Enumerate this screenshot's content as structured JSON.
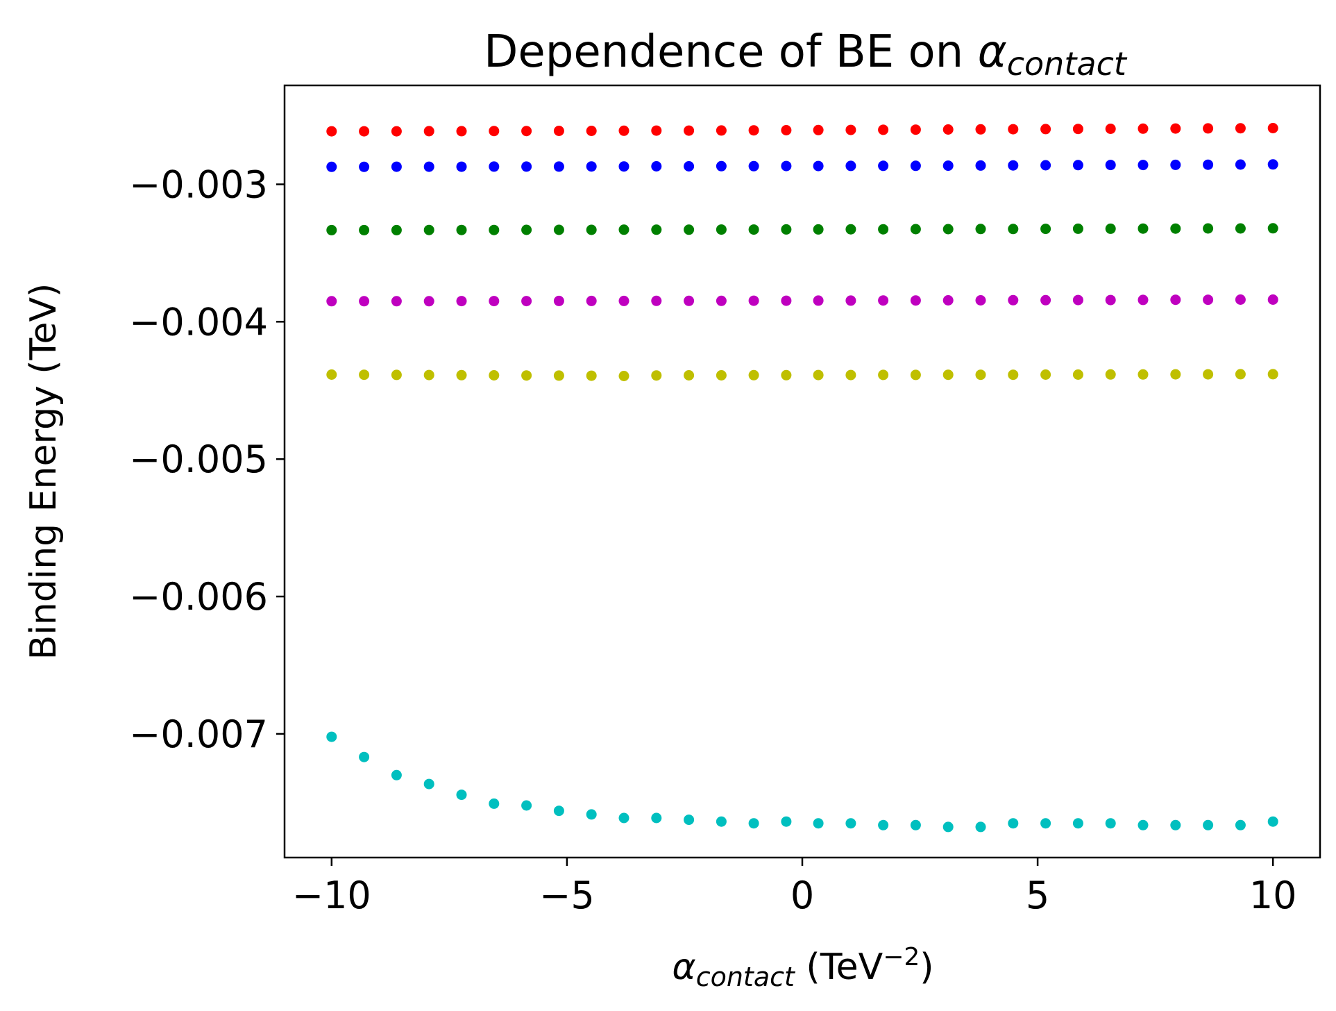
{
  "chart_data": {
    "type": "scatter",
    "title": {
      "text": "Dependence of BE on ",
      "symbol": "α",
      "subscript": "contact"
    },
    "xlabel": {
      "symbol": "α",
      "subscript": "contact",
      "unit_text": " (TeV",
      "superscript": "−2",
      "close": ")"
    },
    "ylabel": "Binding Energy (TeV)",
    "xlim": [
      -11.0,
      11.0
    ],
    "ylim": [
      -0.0079,
      -0.00228
    ],
    "xticks": [
      -10,
      -5,
      0,
      5,
      10
    ],
    "xtick_labels": [
      "−10",
      "−5",
      "0",
      "5",
      "10"
    ],
    "yticks": [
      -0.003,
      -0.004,
      -0.005,
      -0.006,
      -0.007
    ],
    "ytick_labels": [
      "−0.003",
      "−0.004",
      "−0.005",
      "−0.006",
      "−0.007"
    ],
    "grid": false,
    "legend": "none",
    "x": [
      -10.0,
      -9.31,
      -8.62,
      -7.93,
      -7.24,
      -6.55,
      -5.86,
      -5.17,
      -4.48,
      -3.79,
      -3.1,
      -2.41,
      -1.72,
      -1.03,
      -0.34,
      0.34,
      1.03,
      1.72,
      2.41,
      3.1,
      3.79,
      4.48,
      5.17,
      5.86,
      6.55,
      7.24,
      7.93,
      8.62,
      9.31,
      10.0
    ],
    "series": [
      {
        "name": "red",
        "color": "#ff0000",
        "values": [
          -0.002614,
          -0.002614,
          -0.002614,
          -0.002613,
          -0.002613,
          -0.002612,
          -0.002612,
          -0.002611,
          -0.002611,
          -0.00261,
          -0.002609,
          -0.002609,
          -0.002608,
          -0.002607,
          -0.002606,
          -0.002605,
          -0.002604,
          -0.002603,
          -0.002602,
          -0.002601,
          -0.0026,
          -0.002599,
          -0.002598,
          -0.002597,
          -0.002596,
          -0.002595,
          -0.002594,
          -0.002593,
          -0.002592,
          -0.002591
        ]
      },
      {
        "name": "blue",
        "color": "#0000ff",
        "values": [
          -0.002873,
          -0.002873,
          -0.002872,
          -0.002872,
          -0.002872,
          -0.002871,
          -0.002871,
          -0.002871,
          -0.00287,
          -0.00287,
          -0.002869,
          -0.002869,
          -0.002868,
          -0.002868,
          -0.002867,
          -0.002867,
          -0.002866,
          -0.002865,
          -0.002865,
          -0.002864,
          -0.002863,
          -0.002862,
          -0.002861,
          -0.00286,
          -0.002859,
          -0.002859,
          -0.002858,
          -0.002857,
          -0.002856,
          -0.002855
        ]
      },
      {
        "name": "green",
        "color": "#008000",
        "values": [
          -0.003333,
          -0.003333,
          -0.003333,
          -0.003332,
          -0.003332,
          -0.003332,
          -0.003331,
          -0.003331,
          -0.003331,
          -0.00333,
          -0.00333,
          -0.00333,
          -0.003329,
          -0.003329,
          -0.003328,
          -0.003328,
          -0.003327,
          -0.003327,
          -0.003326,
          -0.003326,
          -0.003325,
          -0.003325,
          -0.003324,
          -0.003323,
          -0.003323,
          -0.003322,
          -0.003322,
          -0.003321,
          -0.003321,
          -0.00332
        ]
      },
      {
        "name": "magenta",
        "color": "#bf00bf",
        "values": [
          -0.003851,
          -0.003851,
          -0.003851,
          -0.003851,
          -0.00385,
          -0.00385,
          -0.00385,
          -0.003849,
          -0.003849,
          -0.003849,
          -0.003848,
          -0.003848,
          -0.003848,
          -0.003847,
          -0.003847,
          -0.003846,
          -0.003846,
          -0.003845,
          -0.003845,
          -0.003844,
          -0.003844,
          -0.003843,
          -0.003843,
          -0.003842,
          -0.003842,
          -0.003841,
          -0.00384,
          -0.00384,
          -0.003839,
          -0.003839
        ]
      },
      {
        "name": "yellow",
        "color": "#bfbf00",
        "values": [
          -0.004385,
          -0.004386,
          -0.004387,
          -0.004388,
          -0.004389,
          -0.00439,
          -0.004391,
          -0.004392,
          -0.004393,
          -0.004395,
          -0.004391,
          -0.00439,
          -0.00439,
          -0.004389,
          -0.004389,
          -0.004388,
          -0.004388,
          -0.004387,
          -0.004387,
          -0.004386,
          -0.004386,
          -0.004386,
          -0.004385,
          -0.004385,
          -0.004384,
          -0.004384,
          -0.004383,
          -0.004383,
          -0.004382,
          -0.004382
        ]
      },
      {
        "name": "cyan",
        "color": "#00bfbf",
        "values": [
          -0.007021,
          -0.007168,
          -0.0073,
          -0.007365,
          -0.007443,
          -0.007508,
          -0.007521,
          -0.00756,
          -0.007586,
          -0.007612,
          -0.007612,
          -0.007625,
          -0.007638,
          -0.007651,
          -0.007638,
          -0.007651,
          -0.007651,
          -0.007664,
          -0.007664,
          -0.007677,
          -0.007677,
          -0.007651,
          -0.007651,
          -0.007651,
          -0.007651,
          -0.007664,
          -0.007664,
          -0.007664,
          -0.007664,
          -0.007638
        ]
      }
    ]
  }
}
